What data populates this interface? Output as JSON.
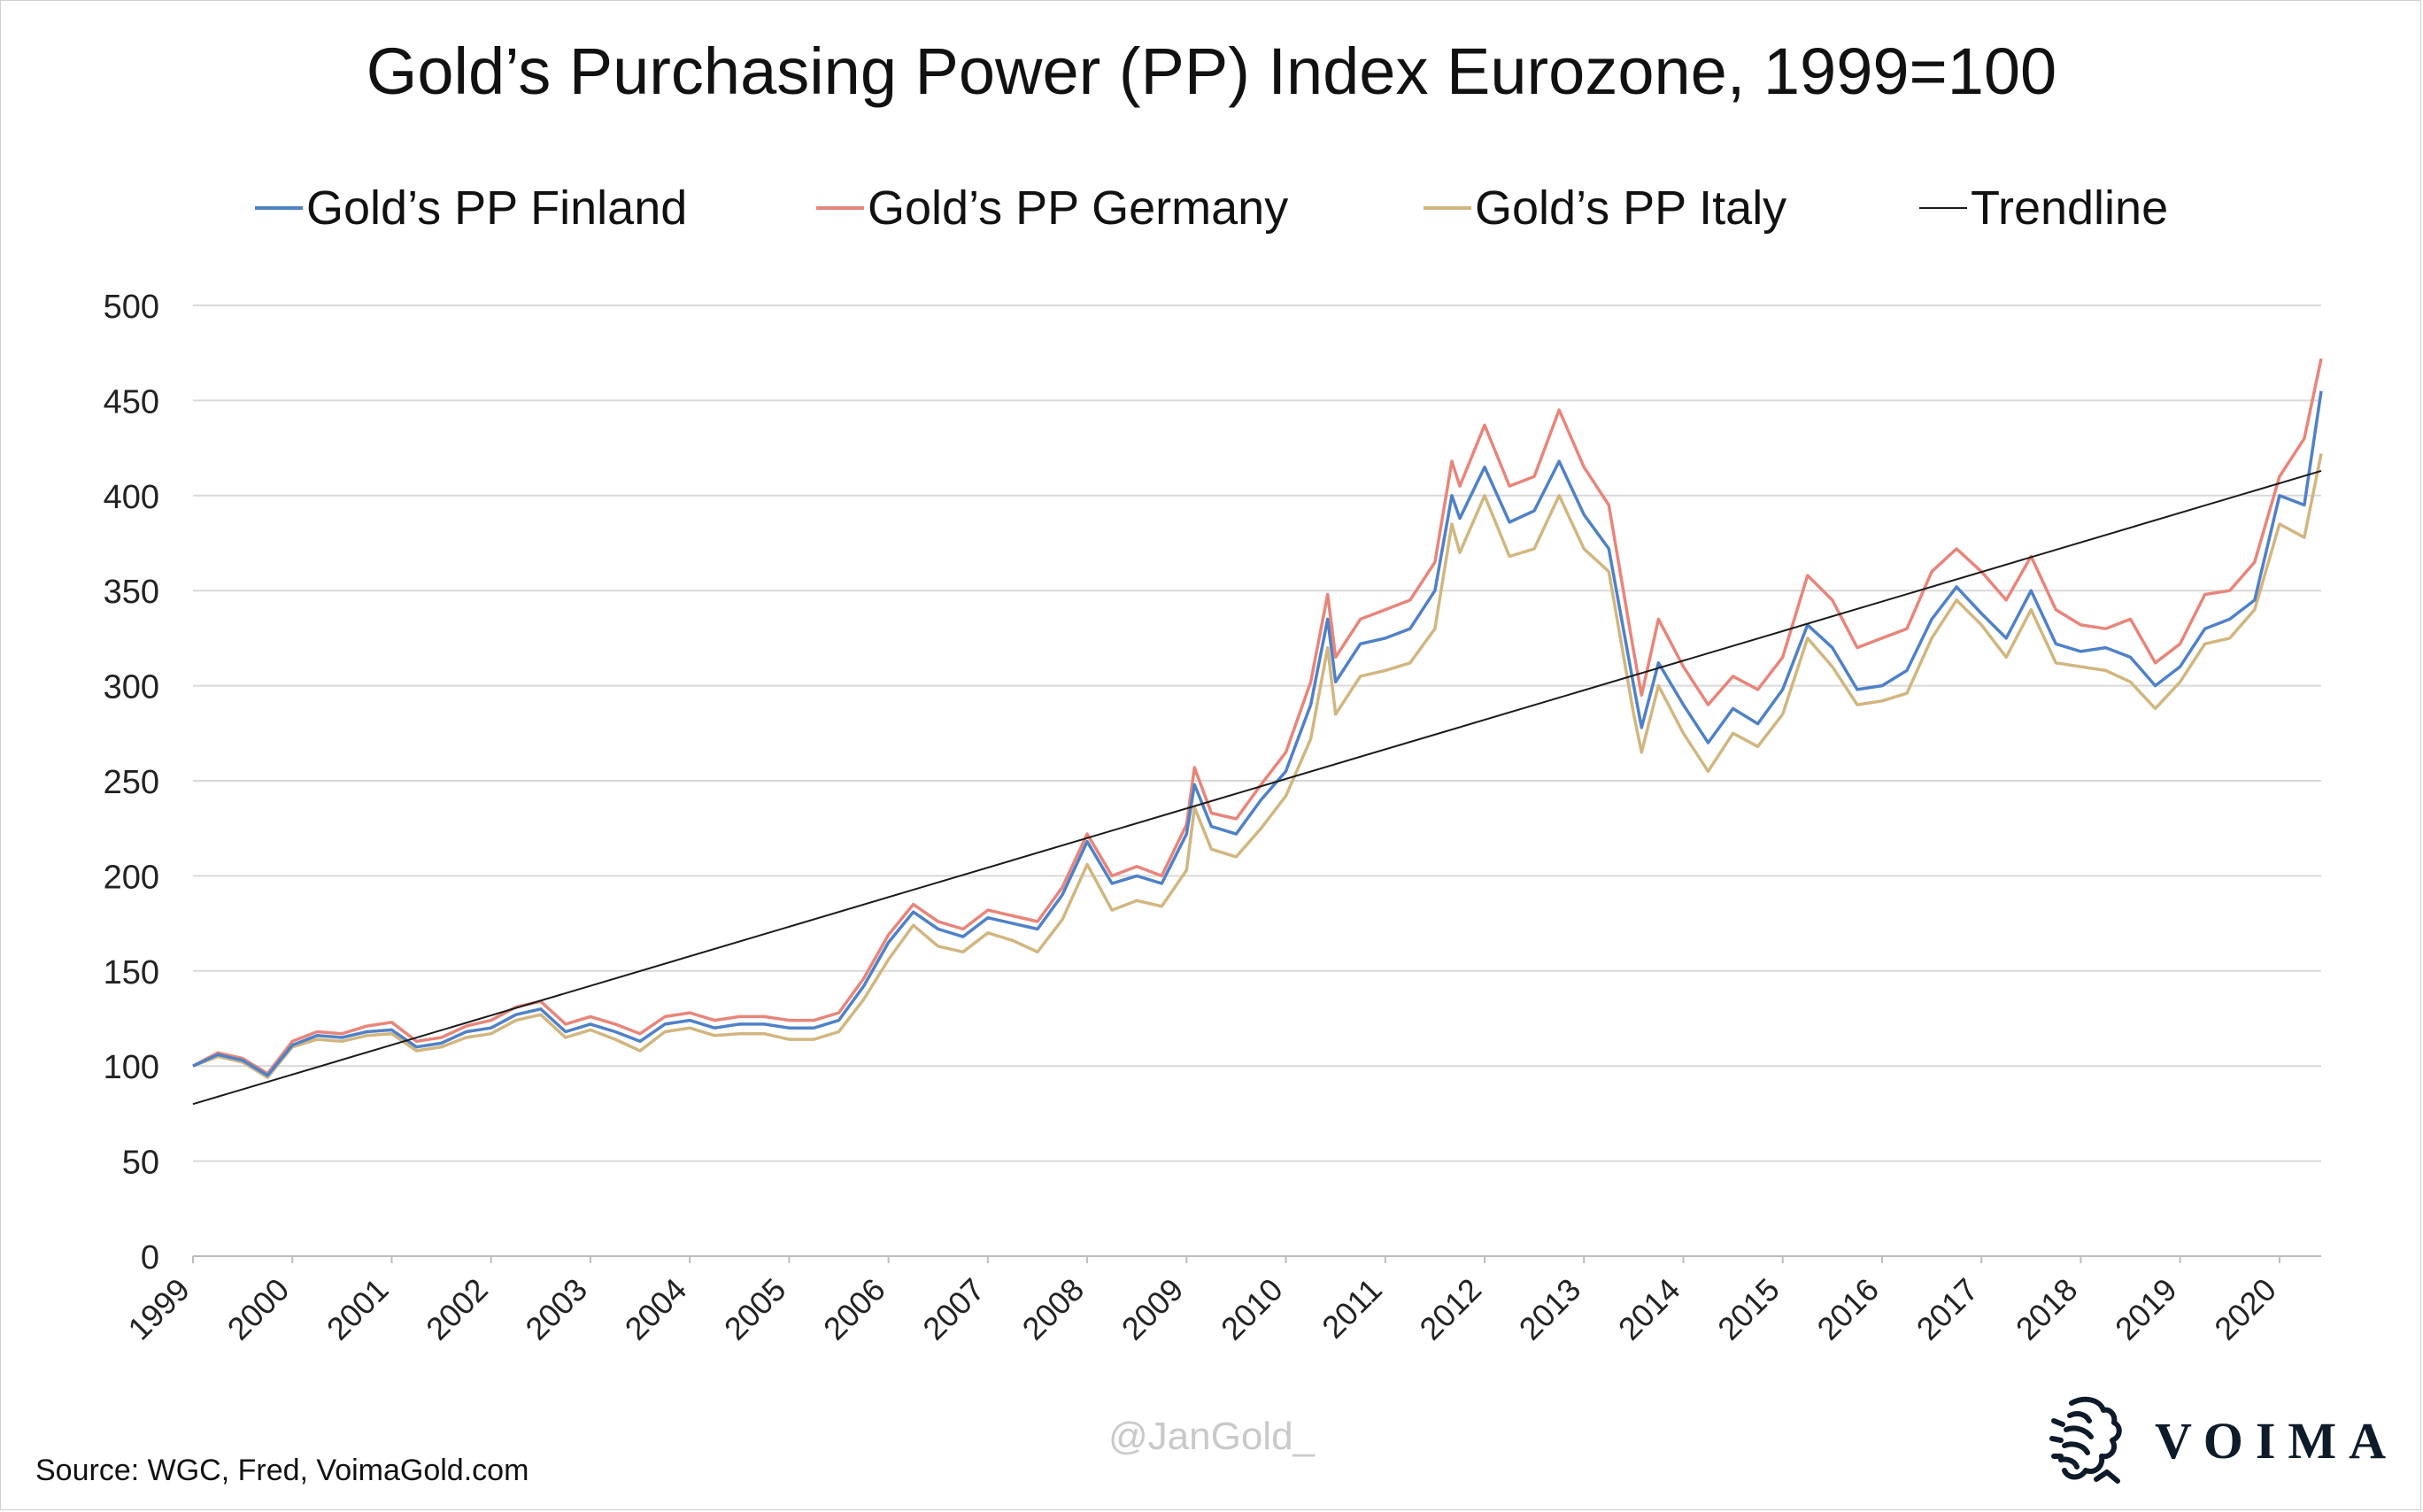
{
  "chart_data": {
    "type": "line",
    "title": "Gold’s Purchasing Power (PP) Index Eurozone, 1999=100",
    "ylim": [
      0,
      500
    ],
    "yticks": [
      0,
      50,
      100,
      150,
      200,
      250,
      300,
      350,
      400,
      450,
      500
    ],
    "xlim": [
      1999.0,
      2020.42
    ],
    "x_tick_labels": [
      "1999",
      "2000",
      "2001",
      "2002",
      "2003",
      "2004",
      "2005",
      "2006",
      "2007",
      "2008",
      "2009",
      "2010",
      "2011",
      "2012",
      "2013",
      "2014",
      "2015",
      "2016",
      "2017",
      "2018",
      "2019",
      "2020"
    ],
    "grid": "horizontal",
    "legend_position": "top",
    "series": [
      {
        "name": "Gold’s PP Finland",
        "color": "#4f81c7",
        "points": [
          [
            1999.0,
            100
          ],
          [
            1999.25,
            106
          ],
          [
            1999.5,
            103
          ],
          [
            1999.75,
            95
          ],
          [
            2000.0,
            111
          ],
          [
            2000.25,
            116
          ],
          [
            2000.5,
            115
          ],
          [
            2000.75,
            118
          ],
          [
            2001.0,
            119
          ],
          [
            2001.25,
            110
          ],
          [
            2001.5,
            112
          ],
          [
            2001.75,
            118
          ],
          [
            2002.0,
            120
          ],
          [
            2002.25,
            127
          ],
          [
            2002.5,
            130
          ],
          [
            2002.75,
            118
          ],
          [
            2003.0,
            122
          ],
          [
            2003.25,
            118
          ],
          [
            2003.5,
            113
          ],
          [
            2003.75,
            122
          ],
          [
            2004.0,
            124
          ],
          [
            2004.25,
            120
          ],
          [
            2004.5,
            122
          ],
          [
            2004.75,
            122
          ],
          [
            2005.0,
            120
          ],
          [
            2005.25,
            120
          ],
          [
            2005.5,
            124
          ],
          [
            2005.75,
            142
          ],
          [
            2006.0,
            165
          ],
          [
            2006.25,
            181
          ],
          [
            2006.5,
            172
          ],
          [
            2006.75,
            168
          ],
          [
            2007.0,
            178
          ],
          [
            2007.25,
            175
          ],
          [
            2007.5,
            172
          ],
          [
            2007.75,
            190
          ],
          [
            2008.0,
            218
          ],
          [
            2008.25,
            196
          ],
          [
            2008.5,
            200
          ],
          [
            2008.75,
            196
          ],
          [
            2009.0,
            222
          ],
          [
            2009.08,
            248
          ],
          [
            2009.25,
            226
          ],
          [
            2009.5,
            222
          ],
          [
            2009.75,
            240
          ],
          [
            2010.0,
            255
          ],
          [
            2010.25,
            290
          ],
          [
            2010.42,
            335
          ],
          [
            2010.5,
            302
          ],
          [
            2010.75,
            322
          ],
          [
            2011.0,
            325
          ],
          [
            2011.25,
            330
          ],
          [
            2011.5,
            350
          ],
          [
            2011.67,
            400
          ],
          [
            2011.75,
            388
          ],
          [
            2012.0,
            415
          ],
          [
            2012.25,
            386
          ],
          [
            2012.5,
            392
          ],
          [
            2012.75,
            418
          ],
          [
            2013.0,
            390
          ],
          [
            2013.25,
            372
          ],
          [
            2013.5,
            300
          ],
          [
            2013.58,
            278
          ],
          [
            2013.75,
            312
          ],
          [
            2014.0,
            290
          ],
          [
            2014.25,
            270
          ],
          [
            2014.5,
            288
          ],
          [
            2014.75,
            280
          ],
          [
            2015.0,
            298
          ],
          [
            2015.25,
            332
          ],
          [
            2015.5,
            320
          ],
          [
            2015.75,
            298
          ],
          [
            2016.0,
            300
          ],
          [
            2016.25,
            308
          ],
          [
            2016.5,
            335
          ],
          [
            2016.75,
            352
          ],
          [
            2017.0,
            338
          ],
          [
            2017.25,
            325
          ],
          [
            2017.5,
            350
          ],
          [
            2017.75,
            322
          ],
          [
            2018.0,
            318
          ],
          [
            2018.25,
            320
          ],
          [
            2018.5,
            315
          ],
          [
            2018.75,
            300
          ],
          [
            2019.0,
            310
          ],
          [
            2019.25,
            330
          ],
          [
            2019.5,
            335
          ],
          [
            2019.75,
            345
          ],
          [
            2020.0,
            400
          ],
          [
            2020.25,
            395
          ],
          [
            2020.42,
            455
          ]
        ]
      },
      {
        "name": "Gold’s PP Germany",
        "color": "#e8857a",
        "points": [
          [
            1999.0,
            100
          ],
          [
            1999.25,
            107
          ],
          [
            1999.5,
            104
          ],
          [
            1999.75,
            96
          ],
          [
            2000.0,
            113
          ],
          [
            2000.25,
            118
          ],
          [
            2000.5,
            117
          ],
          [
            2000.75,
            121
          ],
          [
            2001.0,
            123
          ],
          [
            2001.25,
            113
          ],
          [
            2001.5,
            115
          ],
          [
            2001.75,
            121
          ],
          [
            2002.0,
            124
          ],
          [
            2002.25,
            131
          ],
          [
            2002.5,
            134
          ],
          [
            2002.75,
            122
          ],
          [
            2003.0,
            126
          ],
          [
            2003.25,
            122
          ],
          [
            2003.5,
            117
          ],
          [
            2003.75,
            126
          ],
          [
            2004.0,
            128
          ],
          [
            2004.25,
            124
          ],
          [
            2004.5,
            126
          ],
          [
            2004.75,
            126
          ],
          [
            2005.0,
            124
          ],
          [
            2005.25,
            124
          ],
          [
            2005.5,
            128
          ],
          [
            2005.75,
            146
          ],
          [
            2006.0,
            169
          ],
          [
            2006.25,
            185
          ],
          [
            2006.5,
            176
          ],
          [
            2006.75,
            172
          ],
          [
            2007.0,
            182
          ],
          [
            2007.25,
            179
          ],
          [
            2007.5,
            176
          ],
          [
            2007.75,
            194
          ],
          [
            2008.0,
            222
          ],
          [
            2008.25,
            200
          ],
          [
            2008.5,
            205
          ],
          [
            2008.75,
            200
          ],
          [
            2009.0,
            227
          ],
          [
            2009.08,
            257
          ],
          [
            2009.25,
            233
          ],
          [
            2009.5,
            230
          ],
          [
            2009.75,
            248
          ],
          [
            2010.0,
            265
          ],
          [
            2010.25,
            302
          ],
          [
            2010.42,
            348
          ],
          [
            2010.5,
            315
          ],
          [
            2010.75,
            335
          ],
          [
            2011.0,
            340
          ],
          [
            2011.25,
            345
          ],
          [
            2011.5,
            365
          ],
          [
            2011.67,
            418
          ],
          [
            2011.75,
            405
          ],
          [
            2012.0,
            437
          ],
          [
            2012.25,
            405
          ],
          [
            2012.5,
            410
          ],
          [
            2012.75,
            445
          ],
          [
            2013.0,
            415
          ],
          [
            2013.25,
            395
          ],
          [
            2013.5,
            318
          ],
          [
            2013.58,
            295
          ],
          [
            2013.75,
            335
          ],
          [
            2014.0,
            310
          ],
          [
            2014.25,
            290
          ],
          [
            2014.5,
            305
          ],
          [
            2014.75,
            298
          ],
          [
            2015.0,
            315
          ],
          [
            2015.25,
            358
          ],
          [
            2015.5,
            345
          ],
          [
            2015.75,
            320
          ],
          [
            2016.0,
            325
          ],
          [
            2016.25,
            330
          ],
          [
            2016.5,
            360
          ],
          [
            2016.75,
            372
          ],
          [
            2017.0,
            360
          ],
          [
            2017.25,
            345
          ],
          [
            2017.5,
            368
          ],
          [
            2017.75,
            340
          ],
          [
            2018.0,
            332
          ],
          [
            2018.25,
            330
          ],
          [
            2018.5,
            335
          ],
          [
            2018.75,
            312
          ],
          [
            2019.0,
            322
          ],
          [
            2019.25,
            348
          ],
          [
            2019.5,
            350
          ],
          [
            2019.75,
            365
          ],
          [
            2020.0,
            410
          ],
          [
            2020.25,
            430
          ],
          [
            2020.42,
            472
          ]
        ]
      },
      {
        "name": "Gold’s PP Italy",
        "color": "#d1b67f",
        "points": [
          [
            1999.0,
            100
          ],
          [
            1999.25,
            105
          ],
          [
            1999.5,
            102
          ],
          [
            1999.75,
            94
          ],
          [
            2000.0,
            110
          ],
          [
            2000.25,
            114
          ],
          [
            2000.5,
            113
          ],
          [
            2000.75,
            116
          ],
          [
            2001.0,
            117
          ],
          [
            2001.25,
            108
          ],
          [
            2001.5,
            110
          ],
          [
            2001.75,
            115
          ],
          [
            2002.0,
            117
          ],
          [
            2002.25,
            124
          ],
          [
            2002.5,
            127
          ],
          [
            2002.75,
            115
          ],
          [
            2003.0,
            119
          ],
          [
            2003.25,
            114
          ],
          [
            2003.5,
            108
          ],
          [
            2003.75,
            118
          ],
          [
            2004.0,
            120
          ],
          [
            2004.25,
            116
          ],
          [
            2004.5,
            117
          ],
          [
            2004.75,
            117
          ],
          [
            2005.0,
            114
          ],
          [
            2005.25,
            114
          ],
          [
            2005.5,
            118
          ],
          [
            2005.75,
            135
          ],
          [
            2006.0,
            156
          ],
          [
            2006.25,
            174
          ],
          [
            2006.5,
            163
          ],
          [
            2006.75,
            160
          ],
          [
            2007.0,
            170
          ],
          [
            2007.25,
            166
          ],
          [
            2007.5,
            160
          ],
          [
            2007.75,
            177
          ],
          [
            2008.0,
            206
          ],
          [
            2008.25,
            182
          ],
          [
            2008.5,
            187
          ],
          [
            2008.75,
            184
          ],
          [
            2009.0,
            203
          ],
          [
            2009.08,
            236
          ],
          [
            2009.25,
            214
          ],
          [
            2009.5,
            210
          ],
          [
            2009.75,
            225
          ],
          [
            2010.0,
            242
          ],
          [
            2010.25,
            272
          ],
          [
            2010.42,
            320
          ],
          [
            2010.5,
            285
          ],
          [
            2010.75,
            305
          ],
          [
            2011.0,
            308
          ],
          [
            2011.25,
            312
          ],
          [
            2011.5,
            330
          ],
          [
            2011.67,
            385
          ],
          [
            2011.75,
            370
          ],
          [
            2012.0,
            400
          ],
          [
            2012.25,
            368
          ],
          [
            2012.5,
            372
          ],
          [
            2012.75,
            400
          ],
          [
            2013.0,
            372
          ],
          [
            2013.25,
            360
          ],
          [
            2013.5,
            285
          ],
          [
            2013.58,
            265
          ],
          [
            2013.75,
            300
          ],
          [
            2014.0,
            275
          ],
          [
            2014.25,
            255
          ],
          [
            2014.5,
            275
          ],
          [
            2014.75,
            268
          ],
          [
            2015.0,
            285
          ],
          [
            2015.25,
            325
          ],
          [
            2015.5,
            310
          ],
          [
            2015.75,
            290
          ],
          [
            2016.0,
            292
          ],
          [
            2016.25,
            296
          ],
          [
            2016.5,
            325
          ],
          [
            2016.75,
            345
          ],
          [
            2017.0,
            332
          ],
          [
            2017.25,
            315
          ],
          [
            2017.5,
            340
          ],
          [
            2017.75,
            312
          ],
          [
            2018.0,
            310
          ],
          [
            2018.25,
            308
          ],
          [
            2018.5,
            302
          ],
          [
            2018.75,
            288
          ],
          [
            2019.0,
            302
          ],
          [
            2019.25,
            322
          ],
          [
            2019.5,
            325
          ],
          [
            2019.75,
            340
          ],
          [
            2020.0,
            385
          ],
          [
            2020.25,
            378
          ],
          [
            2020.42,
            422
          ]
        ]
      },
      {
        "name": "Trendline",
        "color": "#1a1a1a",
        "points": [
          [
            1999.0,
            80
          ],
          [
            2020.42,
            413
          ]
        ]
      }
    ]
  },
  "source_note": "Source: WGC, Fred, VoimaGold.com",
  "watermark": "@JanGold_",
  "brand": {
    "name": "VOIMA",
    "icon": "voima-lion-crest-icon"
  }
}
